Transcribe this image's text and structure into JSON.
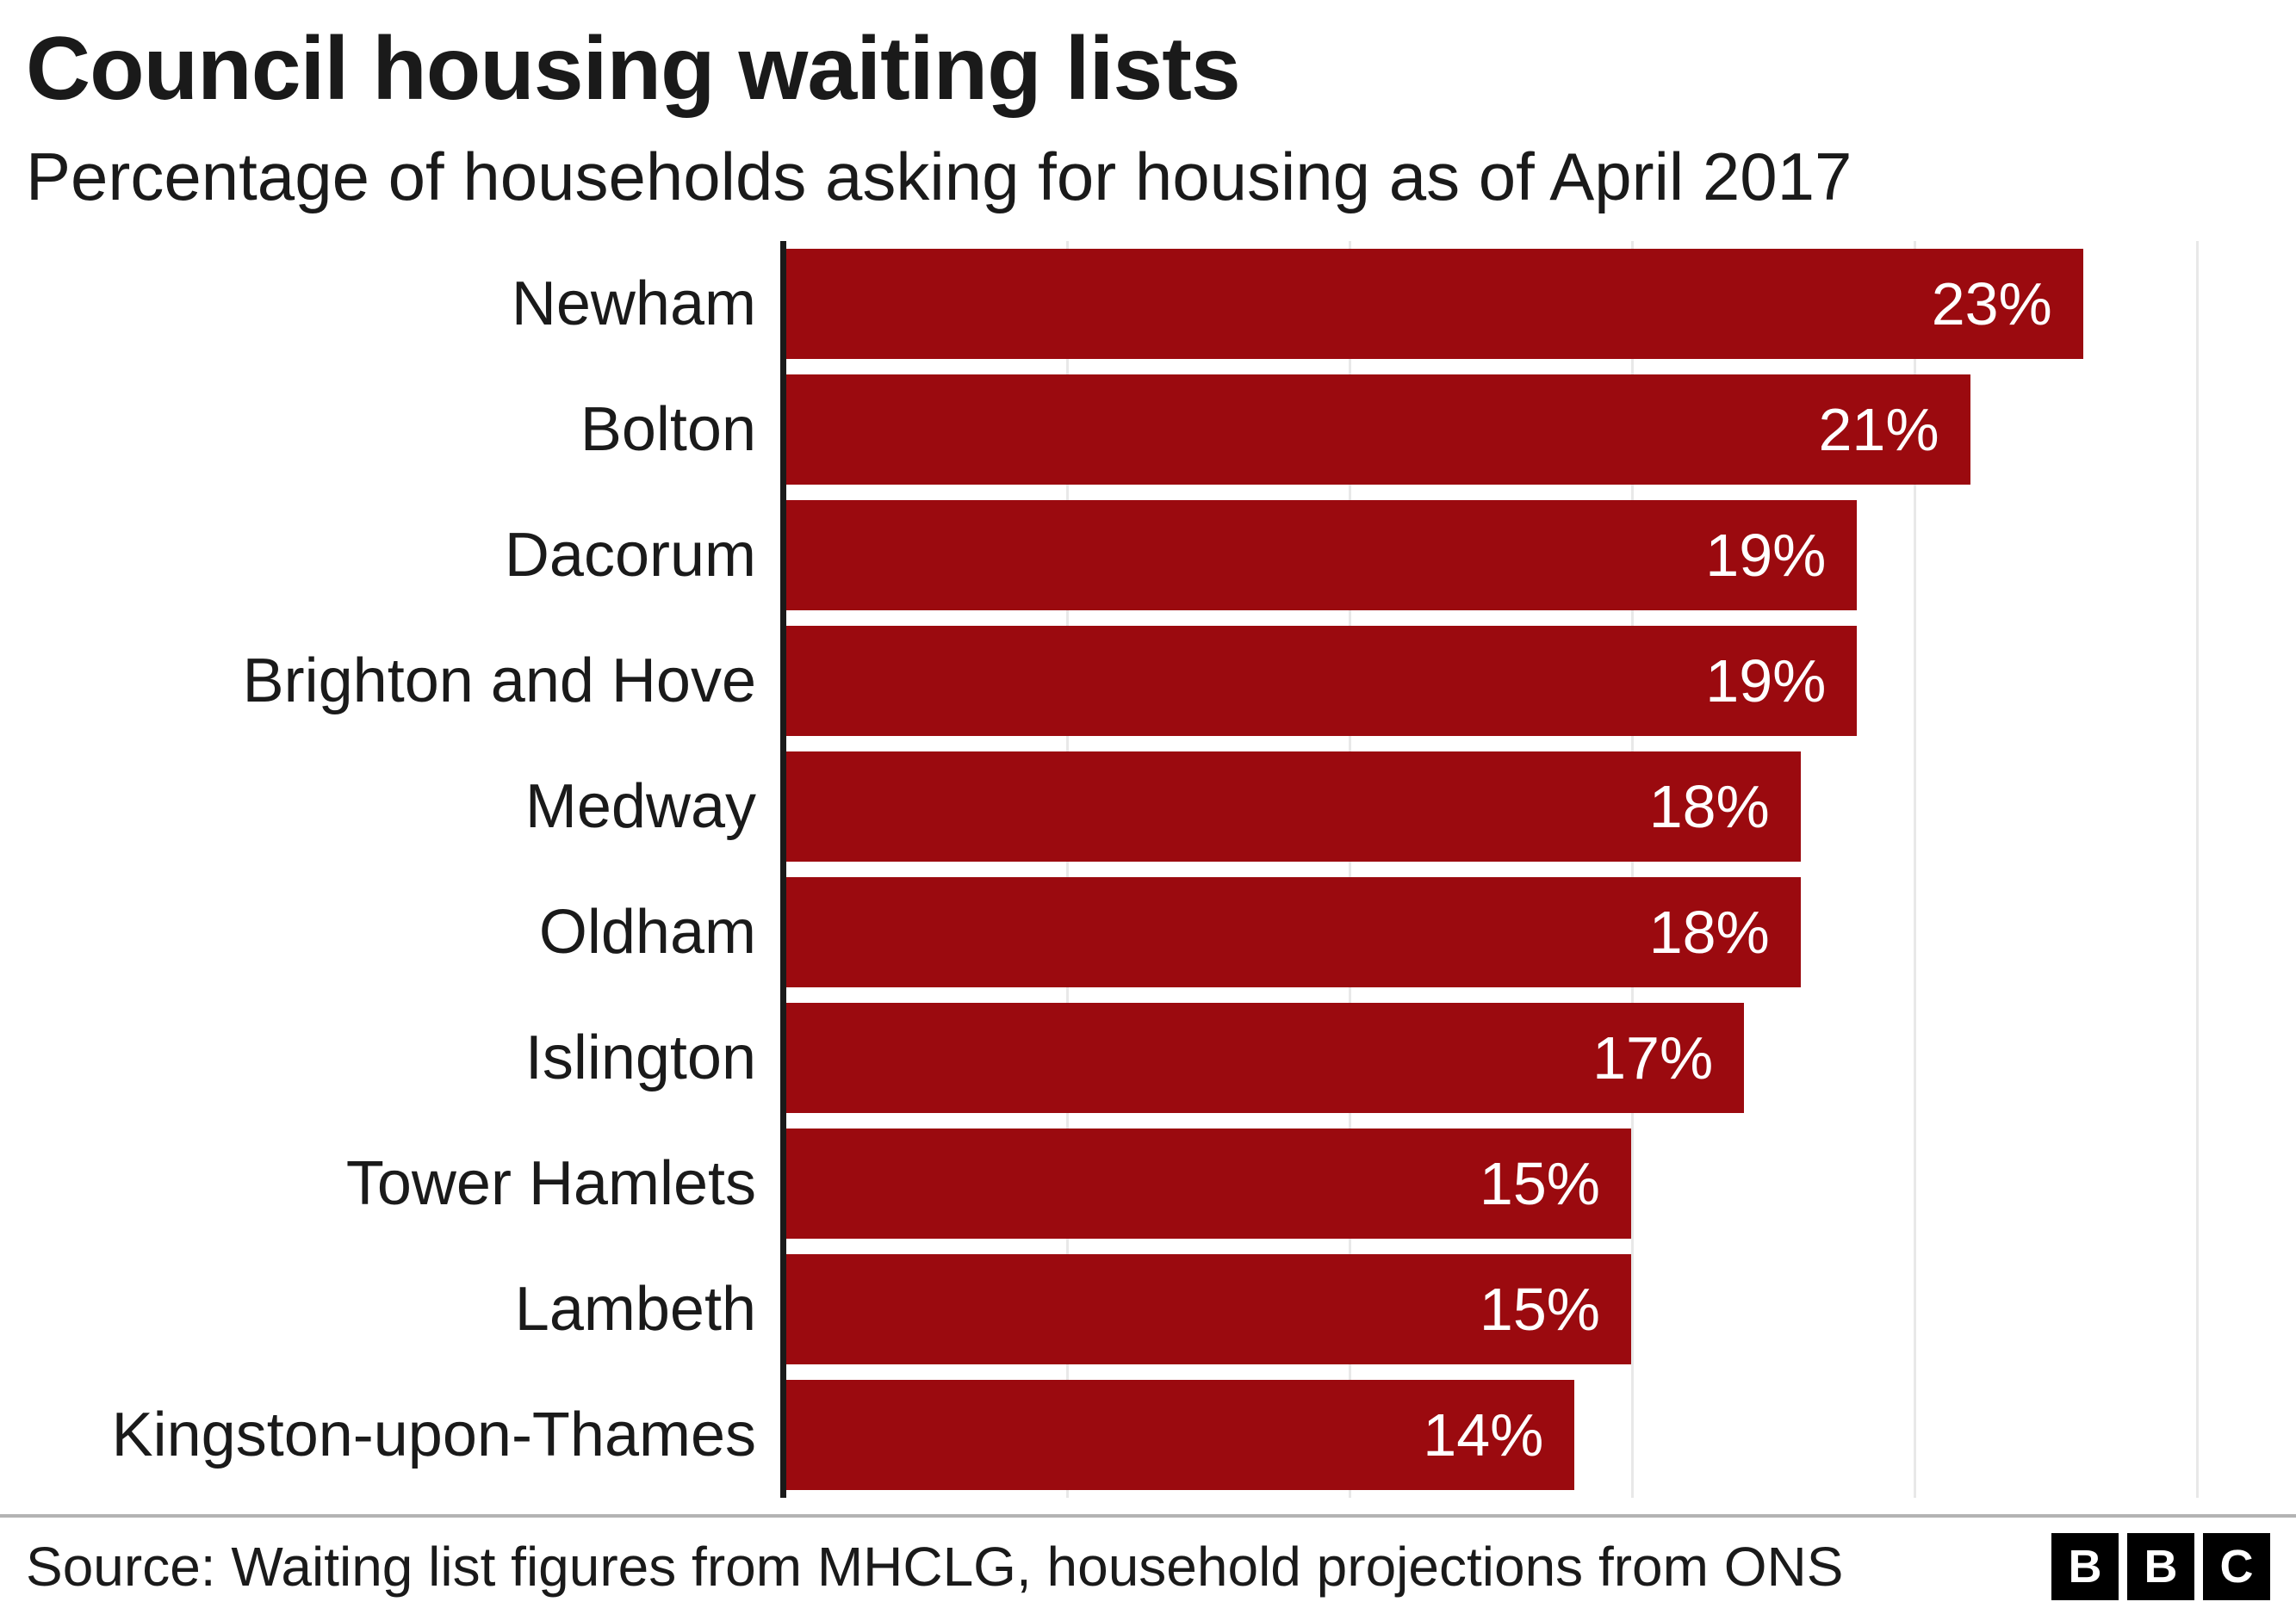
{
  "header": {
    "title": "Council housing waiting lists",
    "subtitle": "Percentage of households asking for housing as of April 2017"
  },
  "chart_data": {
    "type": "bar",
    "orientation": "horizontal",
    "title": "Council housing waiting lists",
    "subtitle": "Percentage of households asking for housing as of April 2017",
    "categories": [
      "Newham",
      "Bolton",
      "Dacorum",
      "Brighton and Hove",
      "Medway",
      "Oldham",
      "Islington",
      "Tower Hamlets",
      "Lambeth",
      "Kingston-upon-Thames"
    ],
    "values": [
      23,
      21,
      19,
      19,
      18,
      18,
      17,
      15,
      15,
      14
    ],
    "value_suffix": "%",
    "xlabel": "",
    "ylabel": "",
    "xlim": [
      0,
      25
    ],
    "gridlines": [
      5,
      10,
      15,
      20,
      25
    ],
    "grid": "on",
    "legend": "none",
    "bar_color": "#9b0a0f",
    "value_label_color": "#ffffff",
    "axis_color": "#1a1a1a"
  },
  "footer": {
    "source": "Source: Waiting list figures from MHCLG, household projections from ONS",
    "logo_letters": [
      "B",
      "B",
      "C"
    ]
  }
}
